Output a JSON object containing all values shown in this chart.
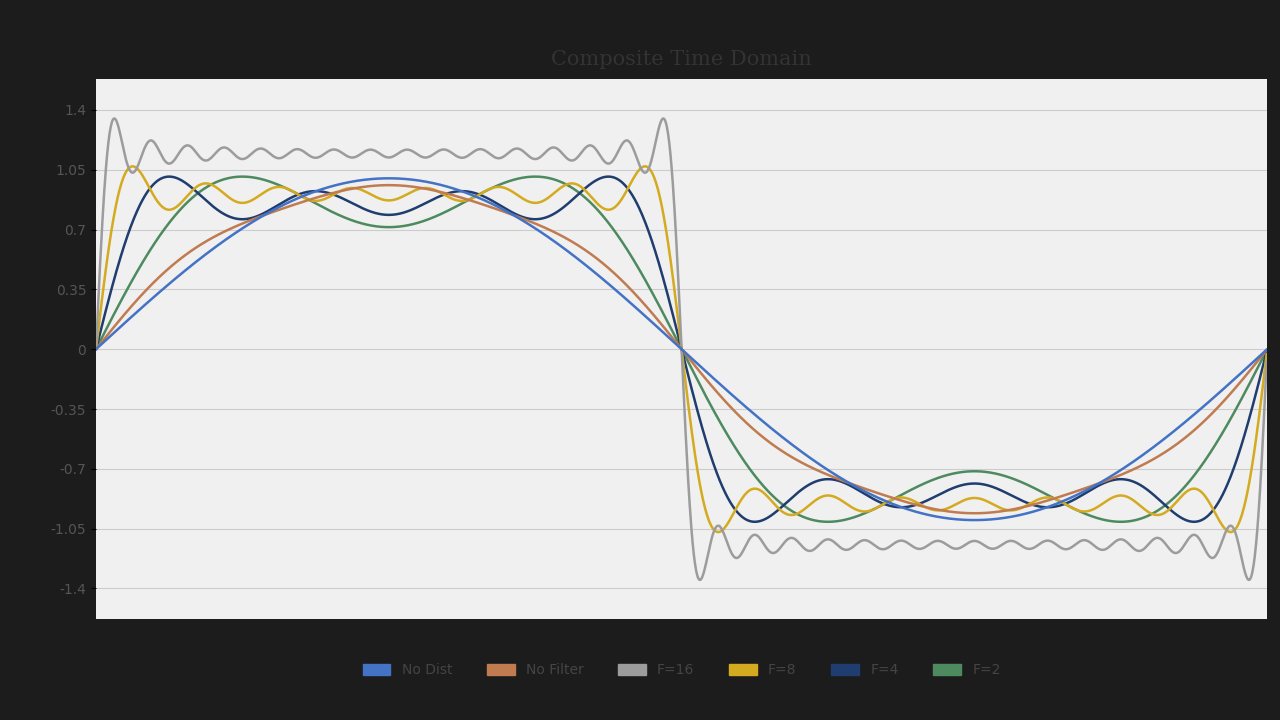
{
  "title": "Composite Time Domain",
  "title_fontsize": 15,
  "background_color": "#1c1c1c",
  "plot_bg_color": "#f0f0f0",
  "yticks": [
    -1.4,
    -1.05,
    -0.7,
    -0.35,
    0,
    0.35,
    0.7,
    1.05,
    1.4
  ],
  "ylim": [
    -1.58,
    1.58
  ],
  "n_points": 2000,
  "fundamental_freq": 1,
  "base_amplitude": 1.0,
  "series": [
    {
      "label": "No Dist",
      "color": "#4472c4",
      "type": "sine",
      "lw": 1.8,
      "zorder": 6
    },
    {
      "label": "No Filter",
      "color": "#c07b50",
      "type": "square_full",
      "max_harmonic": 31,
      "lw": 1.8,
      "zorder": 5
    },
    {
      "label": "F=16",
      "color": "#9c9c9c",
      "type": "square_filtered",
      "max_harmonic": 31,
      "lw": 1.8,
      "zorder": 4
    },
    {
      "label": "F=8",
      "color": "#d4aa20",
      "type": "square_filtered",
      "max_harmonic": 15,
      "lw": 1.8,
      "zorder": 3
    },
    {
      "label": "F=4",
      "color": "#1f3d6e",
      "type": "square_filtered",
      "max_harmonic": 7,
      "lw": 1.8,
      "zorder": 2
    },
    {
      "label": "F=2",
      "color": "#4e8a60",
      "type": "square_filtered",
      "max_harmonic": 3,
      "lw": 1.8,
      "zorder": 1
    }
  ],
  "legend_colors": [
    "#4472c4",
    "#c07b50",
    "#9c9c9c",
    "#d4aa20",
    "#1f3d6e",
    "#4e8a60"
  ],
  "legend_labels": [
    "No Dist",
    "No Filter",
    "F=16",
    "F=8",
    "F=4",
    "F=2"
  ]
}
